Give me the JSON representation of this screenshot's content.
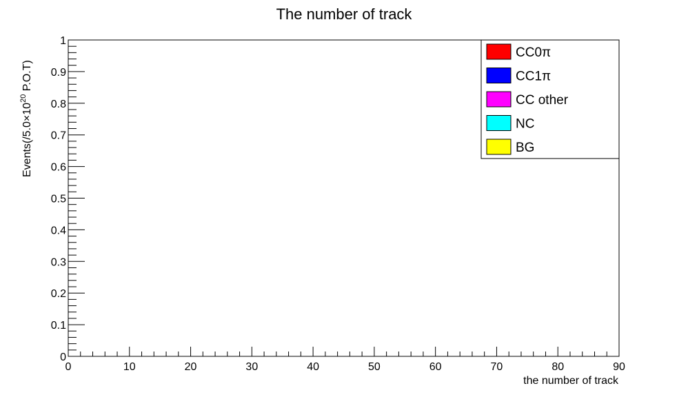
{
  "chart_data": {
    "type": "bar",
    "title": "The number of track",
    "xlabel": "the number of track",
    "ylabel": {
      "prefix": "Events(/5.0×10",
      "exponent": "20",
      "suffix": " P.O.T)"
    },
    "xlim": [
      0,
      90
    ],
    "ylim": [
      0,
      1
    ],
    "x_major_ticks": [
      0,
      10,
      20,
      30,
      40,
      50,
      60,
      70,
      80,
      90
    ],
    "x_tick_labels": [
      "0",
      "10",
      "20",
      "30",
      "40",
      "50",
      "60",
      "70",
      "80",
      "90"
    ],
    "y_major_ticks": [
      0,
      0.1,
      0.2,
      0.3,
      0.4,
      0.5,
      0.6,
      0.7,
      0.8,
      0.9,
      1
    ],
    "y_tick_labels": [
      "0",
      "0.1",
      "0.2",
      "0.3",
      "0.4",
      "0.5",
      "0.6",
      "0.7",
      "0.8",
      "0.9",
      "1"
    ],
    "grid": false,
    "legend_position": "top-right",
    "series": [
      {
        "name": "CC0π",
        "color": "#ff0000",
        "values": []
      },
      {
        "name": "CC1π",
        "color": "#0000ff",
        "values": []
      },
      {
        "name": "CC other",
        "color": "#ff00ff",
        "values": []
      },
      {
        "name": "NC",
        "color": "#00ffff",
        "values": []
      },
      {
        "name": "BG",
        "color": "#ffff00",
        "values": []
      }
    ]
  }
}
